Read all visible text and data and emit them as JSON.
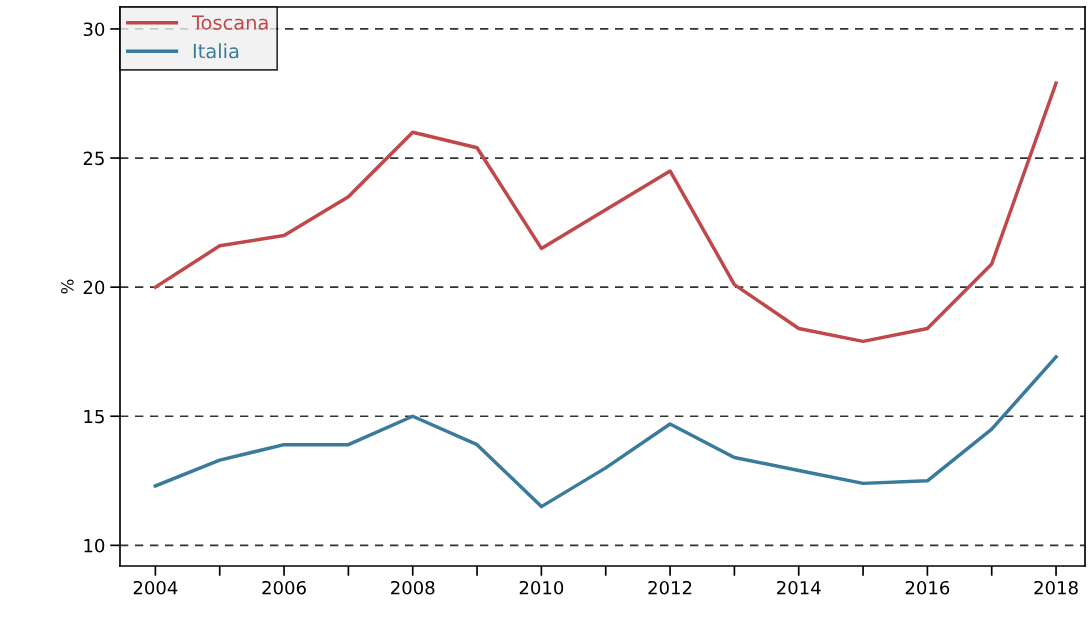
{
  "chart_data": {
    "type": "line",
    "ylabel": "%",
    "x": [
      2004,
      2005,
      2006,
      2007,
      2008,
      2009,
      2010,
      2011,
      2012,
      2013,
      2014,
      2015,
      2016,
      2017,
      2018
    ],
    "series": [
      {
        "name": "Toscana",
        "color": "#c0474a",
        "values": [
          20.0,
          21.6,
          22.0,
          23.5,
          26.0,
          25.4,
          21.5,
          23.0,
          24.5,
          20.1,
          18.4,
          17.9,
          18.4,
          20.9,
          27.9
        ]
      },
      {
        "name": "Italia",
        "color": "#3a7a9a",
        "values": [
          12.3,
          13.3,
          13.9,
          13.9,
          15.0,
          13.9,
          11.5,
          13.0,
          14.7,
          13.4,
          12.9,
          12.4,
          12.5,
          14.5,
          17.3
        ]
      }
    ],
    "xlim": [
      2003.45,
      2018.45
    ],
    "ylim": [
      9.2,
      30.85
    ],
    "xticks": [
      2004,
      {
        "value": 2005,
        "label": null
      },
      2006,
      {
        "value": 2007,
        "label": null
      },
      2008,
      {
        "value": 2009,
        "label": null
      },
      2010,
      {
        "value": 2011,
        "label": null
      },
      2012,
      {
        "value": 2013,
        "label": null
      },
      2014,
      {
        "value": 2015,
        "label": null
      },
      2016,
      {
        "value": 2017,
        "label": null
      },
      2018
    ],
    "yticks": [
      10,
      15,
      20,
      25,
      30
    ],
    "grid": "y",
    "legend": "top left",
    "marker": "none",
    "line_style": "solid"
  }
}
